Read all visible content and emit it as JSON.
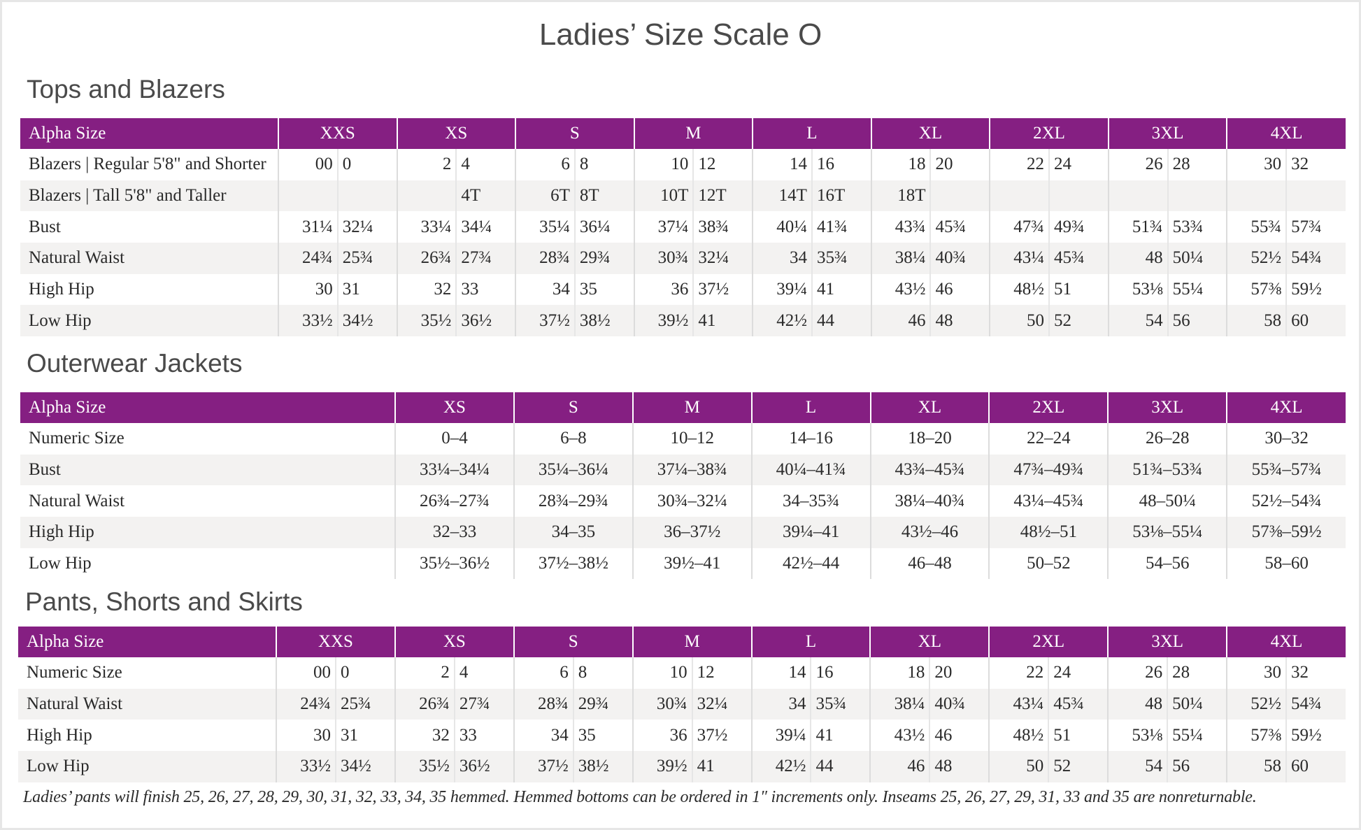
{
  "title": "Ladies’ Size Scale O",
  "colors": {
    "header_bg": "#851f82",
    "stripe": "#f3f2f1"
  },
  "tops": {
    "heading": "Tops and Blazers",
    "header_label": "Alpha Size",
    "sizes": [
      "XXS",
      "XS",
      "S",
      "M",
      "L",
      "XL",
      "2XL",
      "3XL",
      "4XL"
    ],
    "rows": [
      {
        "label": "Blazers | Regular 5'8\" and Shorter",
        "values": [
          "00",
          "0",
          "2",
          "4",
          "6",
          "8",
          "10",
          "12",
          "14",
          "16",
          "18",
          "20",
          "22",
          "24",
          "26",
          "28",
          "30",
          "32"
        ]
      },
      {
        "label": "Blazers | Tall 5'8\" and Taller",
        "values": [
          "",
          "",
          "",
          "4T",
          "6T",
          "8T",
          "10T",
          "12T",
          "14T",
          "16T",
          "18T",
          "",
          "",
          "",
          "",
          "",
          "",
          ""
        ]
      },
      {
        "label": "Bust",
        "values": [
          "31¼",
          "32¼",
          "33¼",
          "34¼",
          "35¼",
          "36¼",
          "37¼",
          "38¾",
          "40¼",
          "41¾",
          "43¾",
          "45¾",
          "47¾",
          "49¾",
          "51¾",
          "53¾",
          "55¾",
          "57¾"
        ]
      },
      {
        "label": "Natural Waist",
        "values": [
          "24¾",
          "25¾",
          "26¾",
          "27¾",
          "28¾",
          "29¾",
          "30¾",
          "32¼",
          "34",
          "35¾",
          "38¼",
          "40¾",
          "43¼",
          "45¾",
          "48",
          "50¼",
          "52½",
          "54¾"
        ]
      },
      {
        "label": "High Hip",
        "values": [
          "30",
          "31",
          "32",
          "33",
          "34",
          "35",
          "36",
          "37½",
          "39¼",
          "41",
          "43½",
          "46",
          "48½",
          "51",
          "53⅛",
          "55¼",
          "57⅜",
          "59½"
        ]
      },
      {
        "label": "Low Hip",
        "values": [
          "33½",
          "34½",
          "35½",
          "36½",
          "37½",
          "38½",
          "39½",
          "41",
          "42½",
          "44",
          "46",
          "48",
          "50",
          "52",
          "54",
          "56",
          "58",
          "60"
        ]
      }
    ]
  },
  "outerwear": {
    "heading": "Outerwear Jackets",
    "header_label": "Alpha Size",
    "sizes": [
      "XS",
      "S",
      "M",
      "L",
      "XL",
      "2XL",
      "3XL",
      "4XL"
    ],
    "rows": [
      {
        "label": "Numeric Size",
        "values": [
          "0–4",
          "6–8",
          "10–12",
          "14–16",
          "18–20",
          "22–24",
          "26–28",
          "30–32"
        ]
      },
      {
        "label": "Bust",
        "values": [
          "33¼–34¼",
          "35¼–36¼",
          "37¼–38¾",
          "40¼–41¾",
          "43¾–45¾",
          "47¾–49¾",
          "51¾–53¾",
          "55¾–57¾"
        ]
      },
      {
        "label": "Natural Waist",
        "values": [
          "26¾–27¾",
          "28¾–29¾",
          "30¾–32¼",
          "34–35¾",
          "38¼–40¾",
          "43¼–45¾",
          "48–50¼",
          "52½–54¾"
        ]
      },
      {
        "label": "High Hip",
        "values": [
          "32–33",
          "34–35",
          "36–37½",
          "39¼–41",
          "43½–46",
          "48½–51",
          "53⅛–55¼",
          "57⅜–59½"
        ]
      },
      {
        "label": "Low Hip",
        "values": [
          "35½–36½",
          "37½–38½",
          "39½–41",
          "42½–44",
          "46–48",
          "50–52",
          "54–56",
          "58–60"
        ]
      }
    ]
  },
  "pants": {
    "heading": "Pants, Shorts and Skirts",
    "header_label": "Alpha Size",
    "sizes": [
      "XXS",
      "XS",
      "S",
      "M",
      "L",
      "XL",
      "2XL",
      "3XL",
      "4XL"
    ],
    "rows": [
      {
        "label": "Numeric Size",
        "values": [
          "00",
          "0",
          "2",
          "4",
          "6",
          "8",
          "10",
          "12",
          "14",
          "16",
          "18",
          "20",
          "22",
          "24",
          "26",
          "28",
          "30",
          "32"
        ]
      },
      {
        "label": "Natural Waist",
        "values": [
          "24¾",
          "25¾",
          "26¾",
          "27¾",
          "28¾",
          "29¾",
          "30¾",
          "32¼",
          "34",
          "35¾",
          "38¼",
          "40¾",
          "43¼",
          "45¾",
          "48",
          "50¼",
          "52½",
          "54¾"
        ]
      },
      {
        "label": "High Hip",
        "values": [
          "30",
          "31",
          "32",
          "33",
          "34",
          "35",
          "36",
          "37½",
          "39¼",
          "41",
          "43½",
          "46",
          "48½",
          "51",
          "53⅛",
          "55¼",
          "57⅜",
          "59½"
        ]
      },
      {
        "label": "Low Hip",
        "values": [
          "33½",
          "34½",
          "35½",
          "36½",
          "37½",
          "38½",
          "39½",
          "41",
          "42½",
          "44",
          "46",
          "48",
          "50",
          "52",
          "54",
          "56",
          "58",
          "60"
        ]
      }
    ]
  },
  "footnote": "Ladies’ pants will finish 25, 26, 27, 28, 29, 30, 31, 32, 33, 34, 35 hemmed. Hemmed bottoms can be ordered in 1″ increments only. Inseams 25, 26, 27, 29, 31, 33 and 35 are nonreturnable."
}
